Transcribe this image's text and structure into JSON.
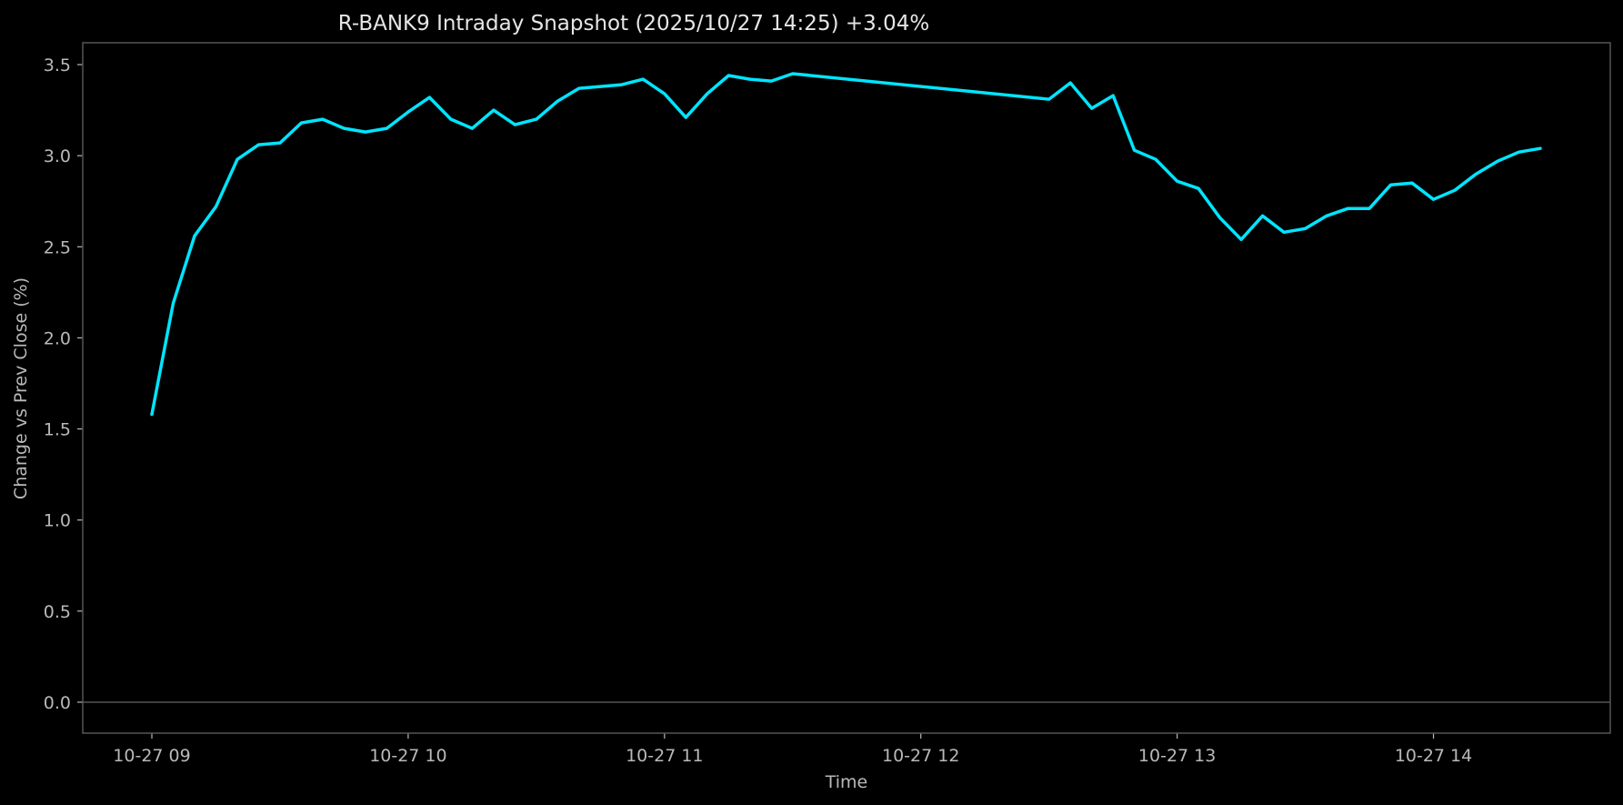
{
  "chart_data": {
    "type": "line",
    "title": "R-BANK9 Intraday Snapshot (2025/10/27 14:25)  +3.04%",
    "xlabel": "Time",
    "ylabel": "Change vs Prev Close (%)",
    "xlim": [
      "09:00",
      "14:25"
    ],
    "ylim": [
      -0.17,
      3.62
    ],
    "y_ticks": [
      0.0,
      0.5,
      1.0,
      1.5,
      2.0,
      2.5,
      3.0,
      3.5
    ],
    "y_tick_labels": [
      "0.0",
      "0.5",
      "1.0",
      "1.5",
      "2.0",
      "2.5",
      "3.0",
      "3.5"
    ],
    "x_ticks": [
      "09:00",
      "10:00",
      "11:00",
      "12:00",
      "13:00",
      "14:00"
    ],
    "x_tick_labels": [
      "10-27 09",
      "10-27 10",
      "10-27 11",
      "10-27 12",
      "10-27 13",
      "10-27 14"
    ],
    "grid": false,
    "zero_line": true,
    "colors": {
      "line": "#00e5ff",
      "background": "#000000",
      "frame": "#555555",
      "zero_line": "#555555",
      "text": "#b9b9b9",
      "title": "#e6e6e6"
    },
    "series": [
      {
        "x": [
          "09:00",
          "09:05",
          "09:10",
          "09:15",
          "09:20",
          "09:25",
          "09:30",
          "09:35",
          "09:40",
          "09:45",
          "09:50",
          "09:55",
          "10:00",
          "10:05",
          "10:10",
          "10:15",
          "10:20",
          "10:25",
          "10:30",
          "10:35",
          "10:40",
          "10:45",
          "10:50",
          "10:55",
          "11:00",
          "11:05",
          "11:10",
          "11:15",
          "11:20",
          "11:25",
          "11:30",
          "12:30",
          "12:35",
          "12:40",
          "12:45",
          "12:50",
          "12:55",
          "13:00",
          "13:05",
          "13:10",
          "13:15",
          "13:20",
          "13:25",
          "13:30",
          "13:35",
          "13:40",
          "13:45",
          "13:50",
          "13:55",
          "14:00",
          "14:05",
          "14:10",
          "14:15",
          "14:20",
          "14:25"
        ],
        "y": [
          1.58,
          2.19,
          2.56,
          2.72,
          2.98,
          3.06,
          3.07,
          3.18,
          3.2,
          3.15,
          3.13,
          3.15,
          3.24,
          3.32,
          3.2,
          3.15,
          3.25,
          3.17,
          3.2,
          3.3,
          3.37,
          3.38,
          3.39,
          3.42,
          3.34,
          3.21,
          3.34,
          3.44,
          3.42,
          3.41,
          3.45,
          3.31,
          3.4,
          3.26,
          3.33,
          3.03,
          2.98,
          2.86,
          2.82,
          2.66,
          2.54,
          2.67,
          2.58,
          2.6,
          2.67,
          2.71,
          2.71,
          2.84,
          2.85,
          2.76,
          2.81,
          2.9,
          2.97,
          3.02,
          3.04
        ]
      }
    ]
  }
}
